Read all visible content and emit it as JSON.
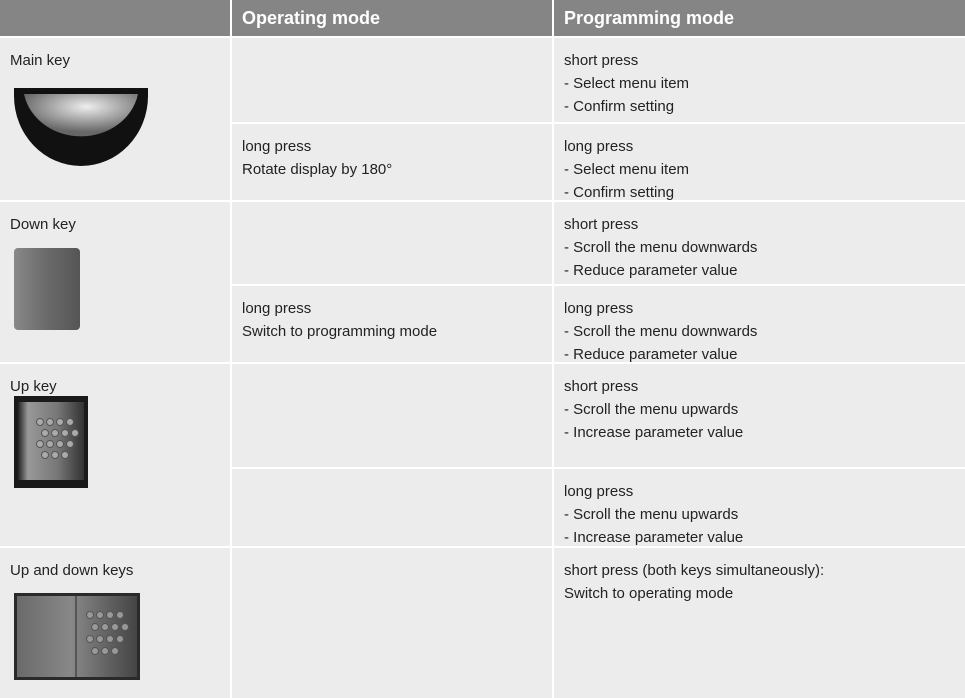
{
  "table": {
    "header": [
      "Operating mode",
      "Programming mode"
    ],
    "rows": [
      {
        "key": "Main key",
        "actions": [
          {
            "operating": [],
            "programming": [
              "short press",
              "- Select menu item",
              "- Confirm setting"
            ]
          },
          {
            "operating": [
              "long press",
              "Rotate display by 180°"
            ],
            "programming": [
              "long press",
              "- Select menu item",
              "- Confirm setting"
            ]
          }
        ]
      },
      {
        "key": "Down key",
        "actions": [
          {
            "operating": [],
            "programming": [
              "short press",
              "- Scroll the menu downwards",
              "- Reduce parameter value"
            ]
          },
          {
            "operating": [
              "long press",
              "Switch to programming mode"
            ],
            "programming": [
              "long press",
              "- Scroll the menu downwards",
              "- Reduce parameter value"
            ]
          }
        ]
      },
      {
        "key": "Up key",
        "actions": [
          {
            "operating": [],
            "programming": [
              "short press",
              "- Scroll the menu upwards",
              "- Increase parameter value"
            ]
          },
          {
            "operating": [],
            "programming": [
              "long press",
              "- Scroll the menu upwards",
              "- Increase parameter value"
            ]
          }
        ]
      },
      {
        "key": "Up and down keys",
        "actions": [
          {
            "operating": [],
            "programming": [
              "short press (both keys simultaneously):",
              "Switch to operating mode"
            ]
          }
        ]
      }
    ]
  }
}
